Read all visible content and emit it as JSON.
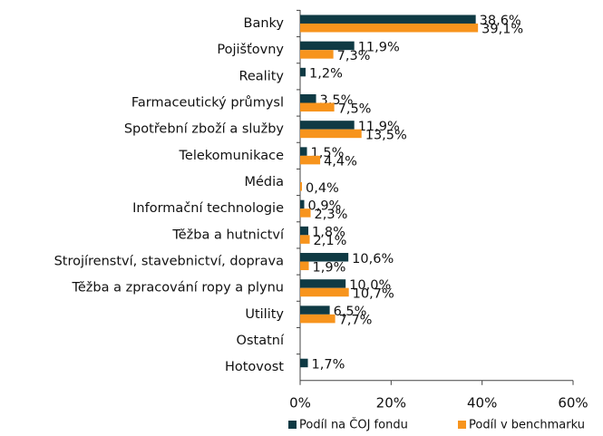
{
  "chart_data": {
    "type": "hbar",
    "categories": [
      "Banky",
      "Pojišťovny",
      "Reality",
      "Farmaceutický průmysl",
      "Spotřební zboží a služby",
      "Telekomunikace",
      "Média",
      "Informační technologie",
      "Těžba a hutnictví",
      "Strojírenství, stavebnictví, doprava",
      "Těžba a zpracování ropy a plynu",
      "Utility",
      "Ostatní",
      "Hotovost"
    ],
    "series": [
      {
        "name": "Podíl na ČOJ fondu",
        "color": "#0f3a44",
        "values": [
          38.6,
          11.9,
          1.2,
          3.5,
          11.9,
          1.5,
          null,
          0.9,
          1.8,
          10.6,
          10.0,
          6.5,
          null,
          1.7
        ],
        "value_labels": [
          "38,6%",
          "11,9%",
          "1,2%",
          "3,5%",
          "11,9%",
          "1,5%",
          null,
          "0,9%",
          "1,8%",
          "10,6%",
          "10,0%",
          "6,5%",
          null,
          "1,7%"
        ],
        "label_color": "#1c3c46"
      },
      {
        "name": "Podíl v benchmarku",
        "color": "#f7941d",
        "values": [
          39.1,
          7.3,
          null,
          7.5,
          13.5,
          4.4,
          0.4,
          2.3,
          2.1,
          1.9,
          10.7,
          7.7,
          null,
          null
        ],
        "value_labels": [
          "39,1%",
          "7,3%",
          null,
          "7,5%",
          "13,5%",
          "4,4%",
          "0,4%",
          "2,3%",
          "2,1%",
          "1,9%",
          "10,7%",
          "7,7%",
          null,
          null
        ],
        "label_color": "#f08c0a"
      }
    ],
    "xlim": [
      0,
      60
    ],
    "xticks": [
      {
        "value": 0,
        "label": "0%"
      },
      {
        "value": 20,
        "label": "20%"
      },
      {
        "value": 40,
        "label": "40%"
      },
      {
        "value": 60,
        "label": "60%"
      }
    ],
    "legend": "bottom"
  }
}
